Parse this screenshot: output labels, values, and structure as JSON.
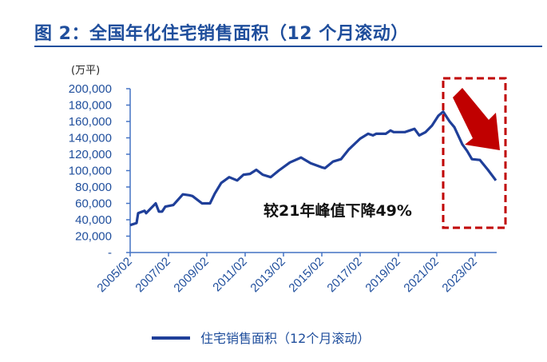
{
  "title": "图 2：全国年化住宅销售面积（12 个月滚动）",
  "chart_data": {
    "type": "line",
    "title": "图 2：全国年化住宅销售面积（12 个月滚动）",
    "ylabel": "(万平)",
    "xlabel": "",
    "ylim": [
      0,
      200000
    ],
    "yticks": [
      "-",
      "20,000",
      "40,000",
      "60,000",
      "80,000",
      "100,000",
      "120,000",
      "140,000",
      "160,000",
      "180,000",
      "200,000"
    ],
    "xticks": [
      "2005/02",
      "2007/02",
      "2009/02",
      "2011/02",
      "2013/02",
      "2015/02",
      "2017/02",
      "2019/02",
      "2021/02",
      "2023/02"
    ],
    "grid": false,
    "legend_position": "bottom",
    "annotation": "较21年峰值下降49%",
    "highlight": "red dashed box with red arrow pointing down over 2021–2024 decline",
    "colors": {
      "line": "#1f3f99",
      "axis": "#4472c4",
      "text": "#1f4e9c",
      "highlight": "#c00000"
    },
    "series": [
      {
        "name": "住宅销售面积（12个月滚动）",
        "x": [
          "2005/02",
          "2005/06",
          "2005/07",
          "2005/11",
          "2005/12",
          "2006/06",
          "2006/08",
          "2006/10",
          "2006/12",
          "2007/05",
          "2007/11",
          "2008/03",
          "2008/05",
          "2008/11",
          "2009/04",
          "2009/07",
          "2009/11",
          "2010/04",
          "2010/09",
          "2011/01",
          "2011/05",
          "2011/09",
          "2012/01",
          "2012/06",
          "2012/11",
          "2013/06",
          "2014/01",
          "2014/07",
          "2015/02",
          "2015/04",
          "2015/09",
          "2016/02",
          "2016/07",
          "2017/02",
          "2017/07",
          "2017/10",
          "2017/12",
          "2018/06",
          "2018/09",
          "2018/11",
          "2019/06",
          "2019/09",
          "2019/12",
          "2020/03",
          "2020/07",
          "2020/11",
          "2021/03",
          "2021/06",
          "2021/10",
          "2022/01",
          "2022/06",
          "2022/09",
          "2022/12",
          "2023/05",
          "2023/10",
          "2024/03"
        ],
        "values": [
          33500,
          36000,
          48000,
          51000,
          48000,
          60000,
          50000,
          50000,
          56000,
          58000,
          71000,
          70000,
          69000,
          60000,
          60000,
          72000,
          85000,
          92000,
          88000,
          95000,
          96000,
          101000,
          95000,
          92000,
          100000,
          110000,
          116000,
          109000,
          104000,
          103000,
          111000,
          114000,
          126000,
          139000,
          145000,
          143000,
          145000,
          145000,
          149000,
          147000,
          147000,
          149000,
          151000,
          143000,
          147000,
          155000,
          167000,
          172000,
          160000,
          153000,
          132000,
          124000,
          114000,
          113000,
          101000,
          88000
        ]
      }
    ]
  }
}
